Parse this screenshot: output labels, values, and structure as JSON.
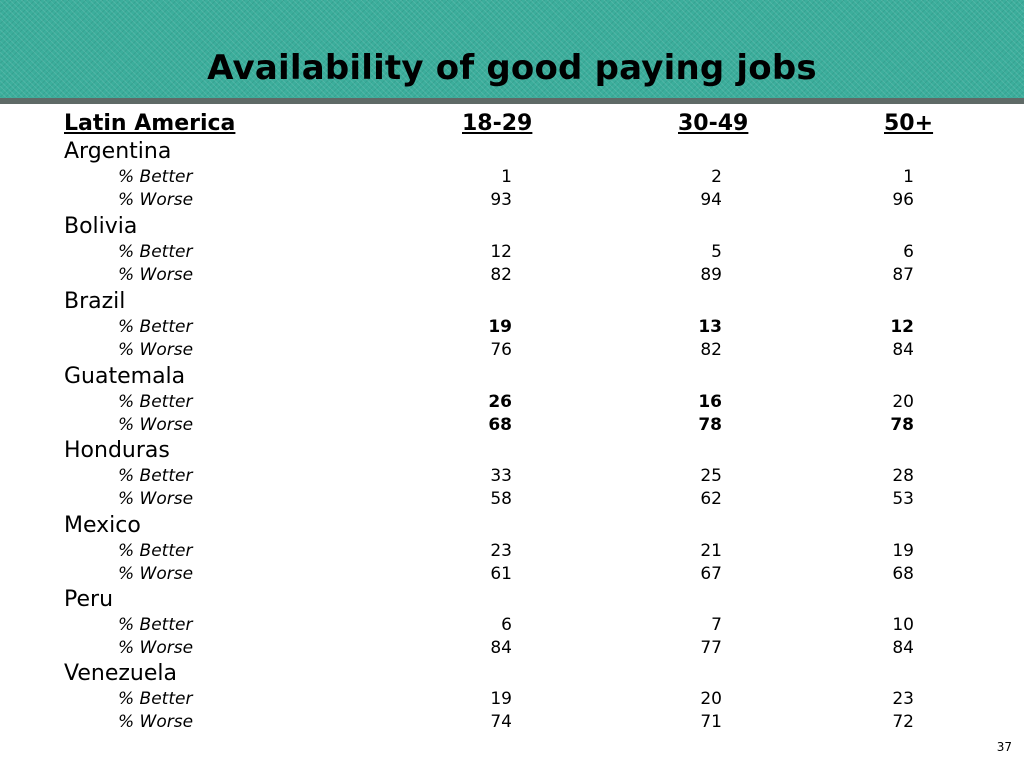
{
  "title": "Availability of good paying jobs",
  "header": {
    "region": "Latin America",
    "col1": "18-29",
    "col2": "30-49",
    "col3": "50+"
  },
  "countries": [
    {
      "name": "Argentina",
      "better": {
        "label": "% Better",
        "values": [
          "1",
          "2",
          "1"
        ]
      },
      "worse": {
        "label": "% Worse",
        "values": [
          "93",
          "94",
          "96"
        ]
      }
    },
    {
      "name": "Bolivia",
      "better": {
        "label": "% Better",
        "values": [
          "12",
          "5",
          "6"
        ]
      },
      "worse": {
        "label": "% Worse",
        "values": [
          "82",
          "89",
          "87"
        ]
      }
    },
    {
      "name": "Brazil",
      "better": {
        "label": "% Better",
        "values": [
          "19",
          "13",
          "12"
        ]
      },
      "worse": {
        "label": "% Worse",
        "values": [
          "76",
          "82",
          "84"
        ]
      }
    },
    {
      "name": "Guatemala",
      "better": {
        "label": "% Better",
        "values": [
          "26",
          "16",
          "20"
        ]
      },
      "worse": {
        "label": "% Worse",
        "values": [
          "68",
          "78",
          "78"
        ]
      }
    },
    {
      "name": "Honduras",
      "better": {
        "label": "% Better",
        "values": [
          "33",
          "25",
          "28"
        ]
      },
      "worse": {
        "label": "% Worse",
        "values": [
          "58",
          "62",
          "53"
        ]
      }
    },
    {
      "name": "Mexico",
      "better": {
        "label": "% Better",
        "values": [
          "23",
          "21",
          "19"
        ]
      },
      "worse": {
        "label": "% Worse",
        "values": [
          "61",
          "67",
          "68"
        ]
      }
    },
    {
      "name": "Peru",
      "better": {
        "label": "% Better",
        "values": [
          "6",
          "7",
          "10"
        ]
      },
      "worse": {
        "label": "% Worse",
        "values": [
          "84",
          "77",
          "84"
        ]
      }
    },
    {
      "name": "Venezuela",
      "better": {
        "label": "% Better",
        "values": [
          "19",
          "20",
          "23"
        ]
      },
      "worse": {
        "label": "% Worse",
        "values": [
          "74",
          "71",
          "72"
        ]
      }
    }
  ],
  "page_number": "37",
  "colors": {
    "banner": "#3cae9c",
    "banner_rule": "#5f6a67"
  }
}
